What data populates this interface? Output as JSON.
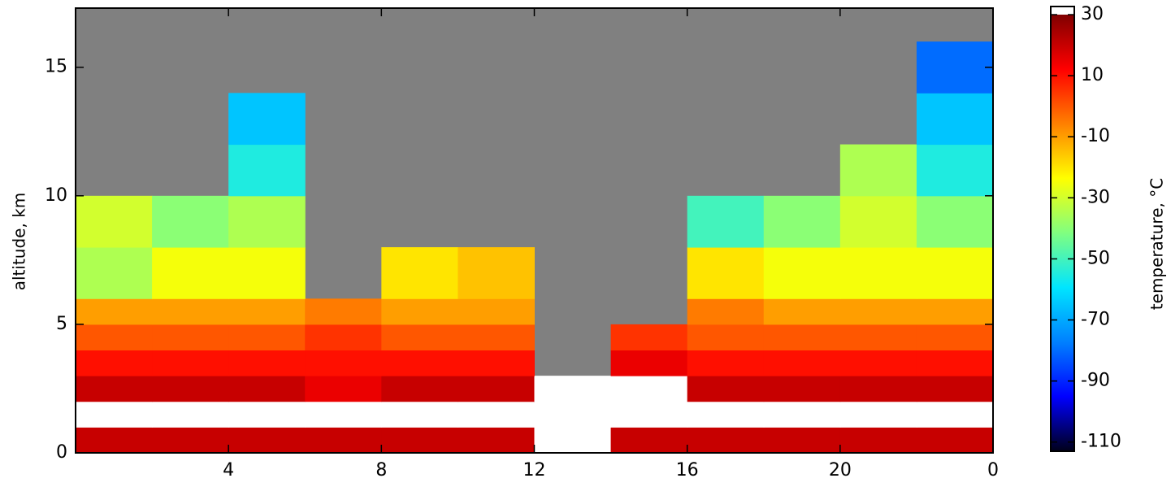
{
  "chart_data": {
    "type": "heatmap",
    "xlabel": null,
    "ylabel": "altitude, km",
    "colorbar_label": "temperature, °C",
    "xlim": [
      0,
      24
    ],
    "xticks": [
      4,
      8,
      12,
      16,
      20,
      {
        "value": 24,
        "label": "0"
      }
    ],
    "ylim": [
      0,
      17.3
    ],
    "yticks": [
      0,
      5,
      10,
      15
    ],
    "clim": [
      -113,
      30
    ],
    "cticks": [
      30,
      10,
      -10,
      -30,
      -50,
      -70,
      -90,
      -110
    ],
    "cmap": [
      "#00001a",
      "#0000ff",
      "#0080ff",
      "#00e5ff",
      "#80ff80",
      "#ffff00",
      "#ff8000",
      "#ff0000",
      "#800000"
    ],
    "over_color": "#ffffff",
    "bad_color": "#808080",
    "xbins": [
      0,
      2,
      4,
      6,
      8,
      10,
      12,
      14,
      16,
      18,
      20,
      22,
      24
    ],
    "ybins": [
      0,
      1,
      2,
      3,
      4,
      5,
      6,
      8,
      10,
      12,
      14,
      16,
      17.3
    ],
    "z": [
      [
        20,
        20,
        20,
        20,
        20,
        20,
        33,
        20,
        20,
        20,
        20,
        20
      ],
      [
        33,
        33,
        33,
        33,
        33,
        33,
        33,
        33,
        33,
        33,
        33,
        33
      ],
      [
        20,
        20,
        20,
        15,
        20,
        20,
        33,
        33,
        20,
        20,
        20,
        20
      ],
      [
        10,
        10,
        10,
        10,
        10,
        10,
        null,
        15,
        10,
        10,
        10,
        10
      ],
      [
        0,
        0,
        0,
        5,
        0,
        0,
        null,
        5,
        0,
        0,
        0,
        0
      ],
      [
        -10,
        -10,
        -10,
        -5,
        -10,
        -10,
        null,
        null,
        -5,
        -10,
        -10,
        -10
      ],
      [
        -35,
        -25,
        -25,
        null,
        -20,
        -15,
        null,
        null,
        -20,
        -25,
        -25,
        -25
      ],
      [
        -30,
        -40,
        -35,
        null,
        null,
        null,
        null,
        null,
        -50,
        -40,
        -30,
        -40
      ],
      [
        null,
        null,
        -55,
        null,
        null,
        null,
        null,
        null,
        null,
        null,
        -35,
        -55
      ],
      [
        null,
        null,
        -65,
        null,
        null,
        null,
        null,
        null,
        null,
        null,
        null,
        -65
      ],
      [
        null,
        null,
        null,
        null,
        null,
        null,
        null,
        null,
        null,
        null,
        null,
        -80
      ],
      [
        null,
        null,
        null,
        null,
        null,
        null,
        null,
        null,
        null,
        null,
        null,
        null
      ]
    ]
  }
}
